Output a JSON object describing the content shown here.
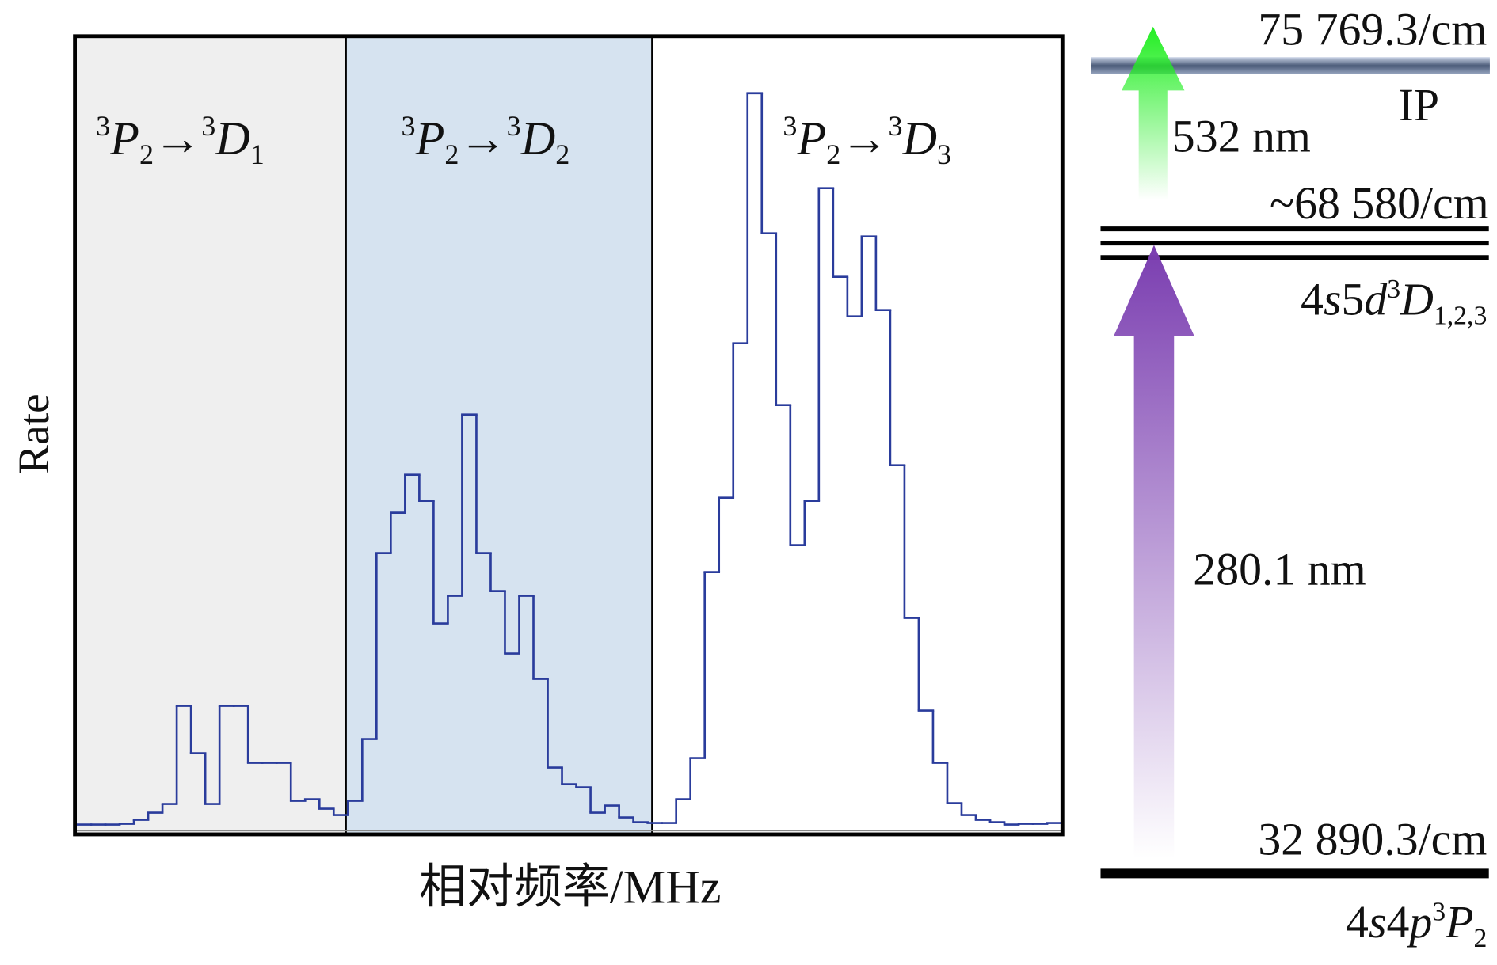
{
  "chart_data": {
    "type": "step",
    "y_label": "Rate",
    "x_label": "相对频率/MHz",
    "color": "#2a3c9c",
    "ylim": [
      0,
      100
    ],
    "values": [
      0.4,
      0.4,
      0.4,
      0.5,
      1.0,
      1.9,
      3.0,
      15.4,
      9.4,
      3.0,
      15.4,
      15.4,
      8.2,
      8.2,
      8.2,
      3.4,
      3.6,
      2.4,
      1.6,
      3.4,
      11.2,
      34.7,
      39.8,
      44.6,
      41.3,
      25.8,
      29.3,
      52.2,
      34.7,
      29.9,
      22.0,
      29.3,
      18.8,
      7.6,
      5.5,
      5.1,
      1.9,
      2.8,
      1.3,
      0.7,
      0.6,
      0.6,
      3.6,
      8.8,
      32.3,
      41.7,
      61.2,
      92.8,
      75.1,
      53.4,
      35.7,
      41.3,
      80.8,
      69.6,
      64.6,
      74.7,
      65.4,
      45.8,
      26.5,
      14.8,
      8.2,
      3.1,
      1.6,
      1.0,
      0.7,
      0.4,
      0.5,
      0.5,
      0.6
    ],
    "regions": [
      {
        "color": "#efefef",
        "label": {
          "upper1": "3",
          "term1": "P",
          "lower1": "2",
          "arrow": "→",
          "upper2": "3",
          "term2": "D",
          "lower2": "1"
        }
      },
      {
        "color": "#d6e3f0",
        "label": {
          "upper1": "3",
          "term1": "P",
          "lower1": "2",
          "arrow": "→",
          "upper2": "3",
          "term2": "D",
          "lower2": "2"
        }
      },
      {
        "color": "#ffffff",
        "label": {
          "upper1": "3",
          "term1": "P",
          "lower1": "2",
          "arrow": "→",
          "upper2": "3",
          "term2": "D",
          "lower2": "3"
        }
      }
    ]
  },
  "level_diagram": {
    "ionization": {
      "energy": "75 769.3/cm",
      "name": "IP"
    },
    "upper": {
      "energy": "~68 580/cm",
      "state": {
        "a": "4",
        "b": "s",
        "c": "5",
        "d": "d",
        "e": "3",
        "f": "D",
        "g": "1,2,3"
      }
    },
    "lower": {
      "energy": "32 890.3/cm",
      "state": {
        "a": "4",
        "b": "s",
        "c": "4",
        "d": "p",
        "e": "3",
        "f": "P",
        "g": "2"
      }
    },
    "ionizing_laser": "532 nm",
    "excitation_laser": "280.1 nm"
  }
}
